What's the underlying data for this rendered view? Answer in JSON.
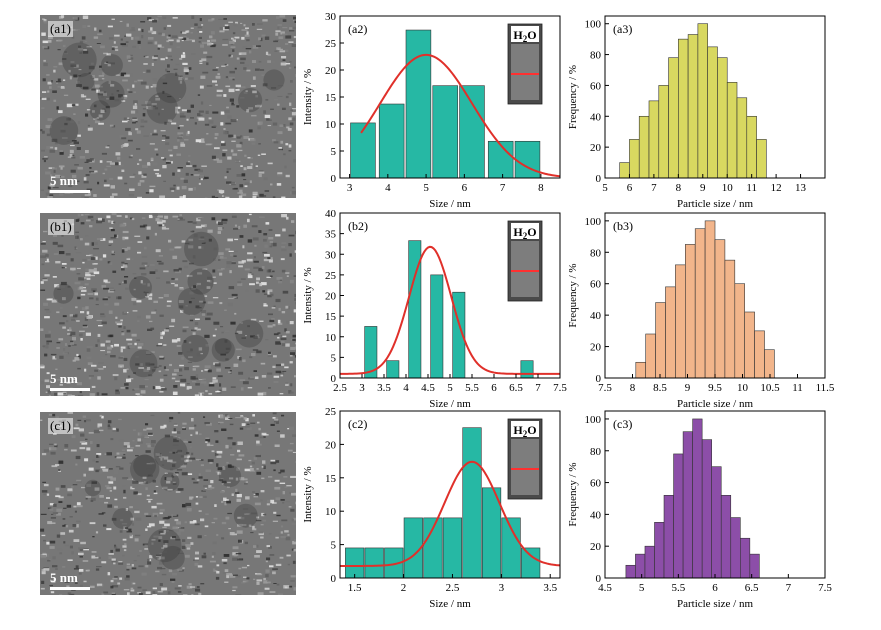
{
  "tem_images": [
    {
      "label": "(a1)",
      "scale_text": "5 nm"
    },
    {
      "label": "(b1)",
      "scale_text": "5 nm"
    },
    {
      "label": "(c1)",
      "scale_text": "5 nm"
    }
  ],
  "colors": {
    "bar_teal": "#26b8a4",
    "fit_red": "#e0302a",
    "hist_yellow": "#d8d860",
    "hist_orange": "#f2b58b",
    "hist_purple": "#8c4ea8"
  },
  "chart_data": [
    {
      "id": "a2",
      "type": "bar",
      "panel_label": "(a2)",
      "xlabel": "Size / nm",
      "ylabel": "Intensity / %",
      "xlim": [
        2.75,
        8.5
      ],
      "ylim": [
        0,
        30
      ],
      "xticks": [
        3,
        4,
        5,
        6,
        7,
        8
      ],
      "yticks": [
        0,
        5,
        10,
        15,
        20,
        25,
        30
      ],
      "bar_width": 0.65,
      "bar_color": "#26b8a4",
      "x": [
        3.35,
        4.1,
        4.8,
        5.5,
        6.2,
        6.95,
        7.65
      ],
      "values": [
        10.2,
        13.7,
        27.4,
        17.1,
        17.1,
        6.8,
        6.8
      ],
      "fit": {
        "mu": 5.0,
        "sigma": 1.2,
        "amplitude": 22.8,
        "offset": 0,
        "xrange": [
          3.3,
          8.5
        ]
      },
      "inset_text": "H2O"
    },
    {
      "id": "a3",
      "type": "bar",
      "panel_label": "(a3)",
      "xlabel": "Particle size / nm",
      "ylabel": "Frequency / %",
      "xlim": [
        5,
        14
      ],
      "ylim": [
        0,
        105
      ],
      "xticks": [
        5,
        6,
        7,
        8,
        9,
        10,
        11,
        12,
        13
      ],
      "yticks": [
        0,
        20,
        40,
        60,
        80,
        100
      ],
      "bar_width": 0.4,
      "bar_color": "#d8d860",
      "x": [
        5.8,
        6.2,
        6.6,
        7.0,
        7.4,
        7.8,
        8.2,
        8.6,
        9.0,
        9.4,
        9.8,
        10.2,
        10.6,
        11.0,
        11.4
      ],
      "values": [
        10,
        25,
        40,
        50,
        60,
        78,
        90,
        93,
        100,
        85,
        78,
        62,
        52,
        40,
        25
      ]
    },
    {
      "id": "b2",
      "type": "bar",
      "panel_label": "(b2)",
      "xlabel": "Size / nm",
      "ylabel": "Intensity / %",
      "xlim": [
        2.5,
        7.5
      ],
      "ylim": [
        0,
        40
      ],
      "xticks": [
        2.5,
        3.0,
        3.5,
        4.0,
        4.5,
        5.0,
        5.5,
        6.0,
        6.5,
        7.0,
        7.5
      ],
      "yticks": [
        0,
        5,
        10,
        15,
        20,
        25,
        30,
        35,
        40
      ],
      "bar_width": 0.28,
      "bar_color": "#26b8a4",
      "x": [
        3.2,
        3.7,
        4.2,
        4.7,
        5.2,
        6.75
      ],
      "values": [
        12.5,
        4.2,
        33.3,
        25.0,
        20.8,
        4.2
      ],
      "fit": {
        "mu": 4.55,
        "sigma": 0.48,
        "amplitude": 30.8,
        "offset": 1.0,
        "xrange": [
          2.5,
          7.5
        ]
      },
      "inset_text": "H2O"
    },
    {
      "id": "b3",
      "type": "bar",
      "panel_label": "(b3)",
      "xlabel": "Particle size / nm",
      "ylabel": "Frequency / %",
      "xlim": [
        7.5,
        11.5
      ],
      "ylim": [
        0,
        105
      ],
      "xticks": [
        7.5,
        8.0,
        8.5,
        9.0,
        9.5,
        10.0,
        10.5,
        11.0,
        11.5
      ],
      "yticks": [
        0,
        20,
        40,
        60,
        80,
        100
      ],
      "bar_width": 0.18,
      "bar_color": "#f2b58b",
      "x": [
        8.15,
        8.33,
        8.51,
        8.69,
        8.87,
        9.05,
        9.23,
        9.41,
        9.59,
        9.77,
        9.95,
        10.13,
        10.31,
        10.49
      ],
      "values": [
        10,
        28,
        48,
        58,
        72,
        85,
        95,
        100,
        88,
        75,
        60,
        42,
        30,
        18
      ]
    },
    {
      "id": "c2",
      "type": "bar",
      "panel_label": "(c2)",
      "xlabel": "Size / nm",
      "ylabel": "Intensity / %",
      "xlim": [
        1.35,
        3.6
      ],
      "ylim": [
        0,
        25
      ],
      "xticks": [
        1.5,
        2.0,
        2.5,
        3.0,
        3.5
      ],
      "yticks": [
        0,
        5,
        10,
        15,
        20,
        25
      ],
      "bar_width": 0.19,
      "bar_color": "#26b8a4",
      "x": [
        1.5,
        1.7,
        1.9,
        2.1,
        2.3,
        2.5,
        2.7,
        2.9,
        3.1,
        3.3
      ],
      "values": [
        4.5,
        4.5,
        4.5,
        9.0,
        9.0,
        9.0,
        22.5,
        13.5,
        9.0,
        4.5
      ],
      "fit": {
        "mu": 2.7,
        "sigma": 0.28,
        "amplitude": 15.6,
        "offset": 1.8,
        "xrange": [
          1.35,
          3.6
        ]
      },
      "inset_text": "H2O"
    },
    {
      "id": "c3",
      "type": "bar",
      "panel_label": "(c3)",
      "xlabel": "Particle size / nm",
      "ylabel": "Frequency / %",
      "xlim": [
        4.5,
        7.5
      ],
      "ylim": [
        0,
        105
      ],
      "xticks": [
        4.5,
        5.0,
        5.5,
        6.0,
        6.5,
        7.0,
        7.5
      ],
      "yticks": [
        0,
        20,
        40,
        60,
        80,
        100
      ],
      "bar_width": 0.13,
      "bar_color": "#8c4ea8",
      "x": [
        4.85,
        4.98,
        5.11,
        5.24,
        5.37,
        5.5,
        5.63,
        5.76,
        5.89,
        6.02,
        6.15,
        6.28,
        6.41,
        6.54
      ],
      "values": [
        8,
        15,
        20,
        35,
        52,
        78,
        92,
        100,
        87,
        70,
        52,
        38,
        25,
        15
      ]
    }
  ]
}
